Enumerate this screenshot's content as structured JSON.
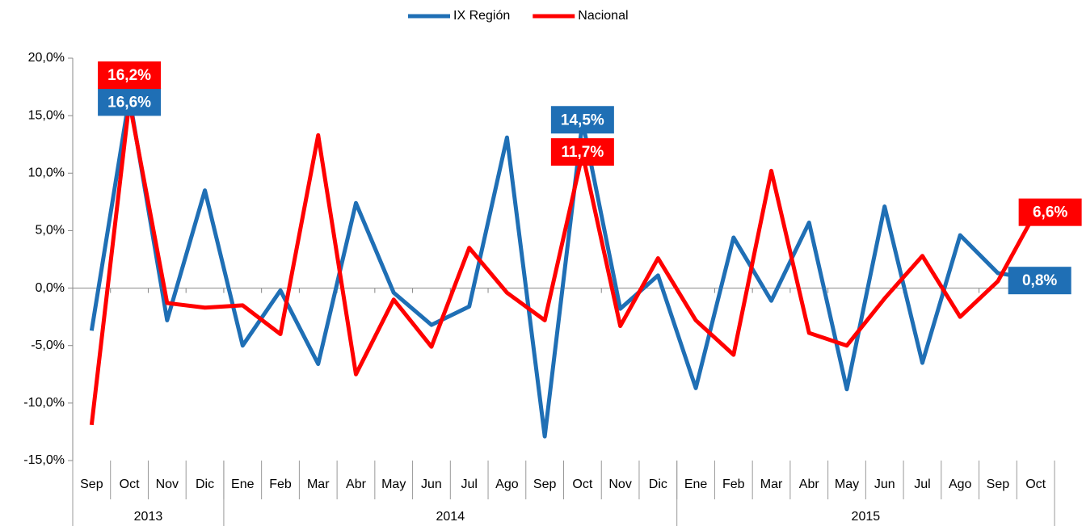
{
  "chart_data": {
    "type": "line",
    "legend": "top",
    "categories": [
      "Sep",
      "Oct",
      "Nov",
      "Dic",
      "Ene",
      "Feb",
      "Mar",
      "Abr",
      "May",
      "Jun",
      "Jul",
      "Ago",
      "Sep",
      "Oct",
      "Nov",
      "Dic",
      "Ene",
      "Feb",
      "Mar",
      "Abr",
      "May",
      "Jun",
      "Jul",
      "Ago",
      "Sep",
      "Oct"
    ],
    "groups": [
      {
        "label": "2013",
        "count": 4
      },
      {
        "label": "2014",
        "count": 12
      },
      {
        "label": "2015",
        "count": 10
      }
    ],
    "ylim": [
      -15,
      20
    ],
    "yticks": [
      {
        "value": -15,
        "label": "-15,0%"
      },
      {
        "value": -10,
        "label": "-10,0%"
      },
      {
        "value": -5,
        "label": "-5,0%"
      },
      {
        "value": 0,
        "label": "0,0%"
      },
      {
        "value": 5,
        "label": "5,0%"
      },
      {
        "value": 10,
        "label": "10,0%"
      },
      {
        "value": 15,
        "label": "15,0%"
      },
      {
        "value": 20,
        "label": "20,0%"
      }
    ],
    "series": [
      {
        "name": "IX Región",
        "color": "#1f6fb5",
        "values": [
          -3.7,
          16.6,
          -2.8,
          8.5,
          -5.0,
          -0.2,
          -6.6,
          7.4,
          -0.4,
          -3.2,
          -1.6,
          13.1,
          -12.9,
          14.5,
          -1.8,
          1.1,
          -8.7,
          4.4,
          -1.1,
          5.7,
          -8.8,
          7.1,
          -6.5,
          4.6,
          1.3,
          0.8
        ],
        "value_labels": [
          null,
          "16,6%",
          null,
          null,
          null,
          null,
          null,
          null,
          null,
          null,
          null,
          null,
          null,
          "14,5%",
          null,
          null,
          null,
          null,
          null,
          null,
          null,
          null,
          null,
          null,
          null,
          "0,8%"
        ]
      },
      {
        "name": "Nacional",
        "color": "#ff0000",
        "values": [
          -11.9,
          16.2,
          -1.3,
          -1.7,
          -1.5,
          -4.0,
          13.3,
          -7.5,
          -1.0,
          -5.1,
          3.5,
          -0.4,
          -2.8,
          11.7,
          -3.3,
          2.6,
          -2.8,
          -5.8,
          10.2,
          -3.9,
          -5.0,
          -0.9,
          2.8,
          -2.5,
          0.6,
          6.6
        ],
        "value_labels": [
          null,
          "16,2%",
          null,
          null,
          null,
          null,
          null,
          null,
          null,
          null,
          null,
          null,
          null,
          "11,7%",
          null,
          null,
          null,
          null,
          null,
          null,
          null,
          null,
          null,
          null,
          null,
          "6,6%"
        ]
      }
    ]
  }
}
